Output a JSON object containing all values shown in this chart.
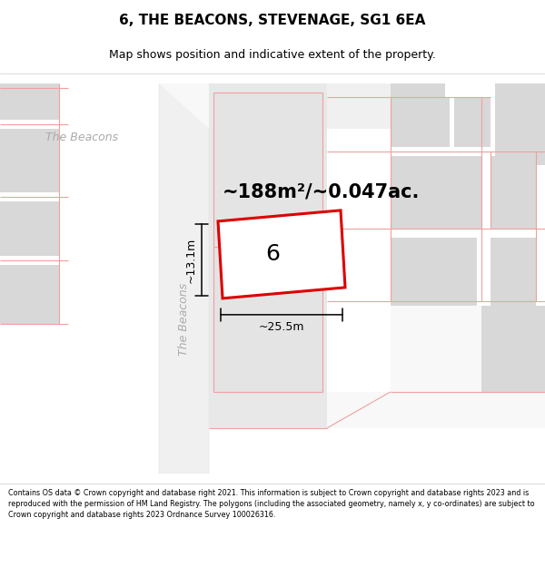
{
  "title": "6, THE BEACONS, STEVENAGE, SG1 6EA",
  "subtitle": "Map shows position and indicative extent of the property.",
  "area_text": "~188m²/~0.047ac.",
  "width_text": "~25.5m",
  "height_text": "~13.1m",
  "plot_number": "6",
  "footer": "Contains OS data © Crown copyright and database right 2021. This information is subject to Crown copyright and database rights 2023 and is reproduced with the permission of HM Land Registry. The polygons (including the associated geometry, namely x, y co-ordinates) are subject to Crown copyright and database rights 2023 Ordnance Survey 100026316.",
  "map_bg": "#f5f5f5",
  "road_color": "#ffffff",
  "building_color": "#d8d8d8",
  "boundary_color": "#f0a0a0",
  "plot_border": "#dd0000",
  "plot_fill": "#ffffff",
  "footer_bg": "#ffffff",
  "title_bg": "#ffffff",
  "label_color": "#aaaaaa",
  "title_fontsize": 11,
  "subtitle_fontsize": 9,
  "area_fontsize": 15,
  "dim_fontsize": 9,
  "plot_label_fontsize": 18,
  "footer_fontsize": 5.8,
  "road_label_fontsize": 9
}
